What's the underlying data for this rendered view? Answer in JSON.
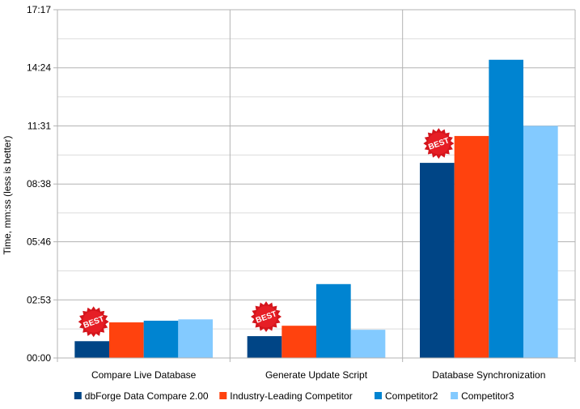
{
  "chart_data": {
    "type": "bar",
    "title": "",
    "xlabel": "",
    "ylabel": "Time, mm:ss (less is better)",
    "categories": [
      "Compare Live Database",
      "Generate Update Script",
      "Database Synchronization"
    ],
    "series": [
      {
        "name": "dbForge Data Compare 2.00",
        "color": "#004586",
        "values": [
          50,
          65,
          581
        ]
      },
      {
        "name": "Industry-Leading Competitor",
        "color": "#ff420e",
        "values": [
          106,
          96,
          661
        ]
      },
      {
        "name": "Competitor2",
        "color": "#0084d1",
        "values": [
          111,
          220,
          888
        ]
      },
      {
        "name": "Competitor3",
        "color": "#83caff",
        "values": [
          115,
          84,
          691
        ]
      }
    ],
    "ylim": [
      0,
      1037
    ],
    "yticks": [
      0,
      173,
      346,
      518,
      691,
      864,
      1037
    ],
    "ytick_labels": [
      "00:00",
      "02:53",
      "05:46",
      "08:38",
      "11:31",
      "14:24",
      "17:17"
    ],
    "grid": true,
    "legend_position": "bottom",
    "annotations": [
      {
        "text": "BEST",
        "category": "Compare Live Database",
        "series": "dbForge Data Compare 2.00"
      },
      {
        "text": "BEST",
        "category": "Generate Update Script",
        "series": "dbForge Data Compare 2.00"
      },
      {
        "text": "BEST",
        "category": "Database Synchronization",
        "series": "dbForge Data Compare 2.00"
      }
    ]
  }
}
